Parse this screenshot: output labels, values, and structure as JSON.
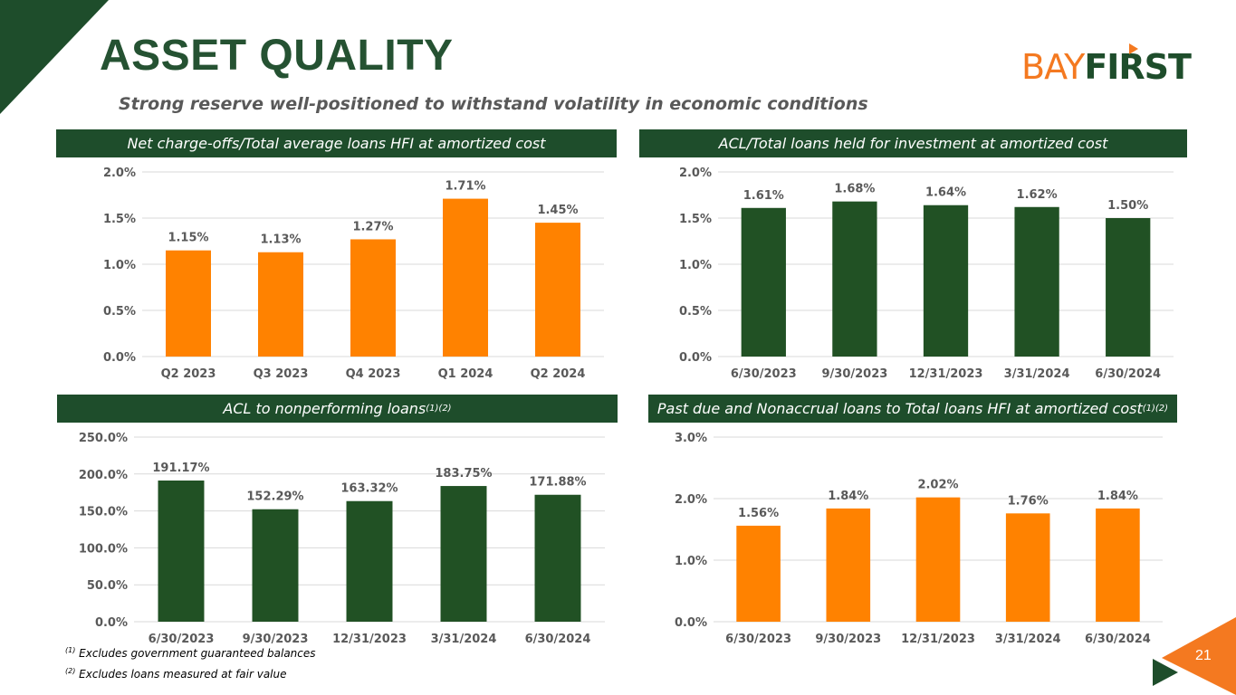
{
  "title": "ASSET QUALITY",
  "subtitle": "Strong reserve well-positioned to withstand volatility in economic conditions",
  "logo": {
    "part1": "BAY",
    "part2": "FIRST"
  },
  "page_number": "21",
  "footnotes": [
    {
      "mark": "(1)",
      "text": "Excludes government guaranteed balances"
    },
    {
      "mark": "(2)",
      "text": "Excludes loans measured at fair value"
    }
  ],
  "colors": {
    "green": "#1e4d2b",
    "orange": "#ff8200",
    "bar_green": "#215124"
  },
  "chart_data": [
    {
      "type": "bar",
      "title": "Net charge-offs/Total average loans HFI at amortized cost",
      "title_sup": "",
      "categories": [
        "Q2 2023",
        "Q3 2023",
        "Q4 2023",
        "Q1 2024",
        "Q2 2024"
      ],
      "values": [
        1.15,
        1.13,
        1.27,
        1.71,
        1.45
      ],
      "labels": [
        "1.15%",
        "1.13%",
        "1.27%",
        "1.71%",
        "1.45%"
      ],
      "yticks": [
        0,
        0.5,
        1.0,
        1.5,
        2.0
      ],
      "ytick_labels": [
        "0.0%",
        "0.5%",
        "1.0%",
        "1.5%",
        "2.0%"
      ],
      "ylim": [
        0,
        2.0
      ],
      "color": "#ff8200"
    },
    {
      "type": "bar",
      "title": "ACL/Total loans held for investment at amortized cost",
      "title_sup": "",
      "categories": [
        "6/30/2023",
        "9/30/2023",
        "12/31/2023",
        "3/31/2024",
        "6/30/2024"
      ],
      "values": [
        1.61,
        1.68,
        1.64,
        1.62,
        1.5
      ],
      "labels": [
        "1.61%",
        "1.68%",
        "1.64%",
        "1.62%",
        "1.50%"
      ],
      "yticks": [
        0,
        0.5,
        1.0,
        1.5,
        2.0
      ],
      "ytick_labels": [
        "0.0%",
        "0.5%",
        "1.0%",
        "1.5%",
        "2.0%"
      ],
      "ylim": [
        0,
        2.0
      ],
      "color": "#215124"
    },
    {
      "type": "bar",
      "title": "ACL to nonperforming loans",
      "title_sup": "(1)(2)",
      "categories": [
        "6/30/2023",
        "9/30/2023",
        "12/31/2023",
        "3/31/2024",
        "6/30/2024"
      ],
      "values": [
        191.17,
        152.29,
        163.32,
        183.75,
        171.88
      ],
      "labels": [
        "191.17%",
        "152.29%",
        "163.32%",
        "183.75%",
        "171.88%"
      ],
      "yticks": [
        0,
        50,
        100,
        150,
        200,
        250
      ],
      "ytick_labels": [
        "0.0%",
        "50.0%",
        "100.0%",
        "150.0%",
        "200.0%",
        "250.0%"
      ],
      "ylim": [
        0,
        250
      ],
      "color": "#215124"
    },
    {
      "type": "bar",
      "title": "Past due and Nonaccrual loans to Total loans HFI at amortized cost",
      "title_sup": "(1)(2)",
      "categories": [
        "6/30/2023",
        "9/30/2023",
        "12/31/2023",
        "3/31/2024",
        "6/30/2024"
      ],
      "values": [
        1.56,
        1.84,
        2.02,
        1.76,
        1.84
      ],
      "labels": [
        "1.56%",
        "1.84%",
        "2.02%",
        "1.76%",
        "1.84%"
      ],
      "yticks": [
        0,
        1.0,
        2.0,
        3.0
      ],
      "ytick_labels": [
        "0.0%",
        "1.0%",
        "2.0%",
        "3.0%"
      ],
      "ylim": [
        0,
        3.0
      ],
      "color": "#ff8200"
    }
  ]
}
